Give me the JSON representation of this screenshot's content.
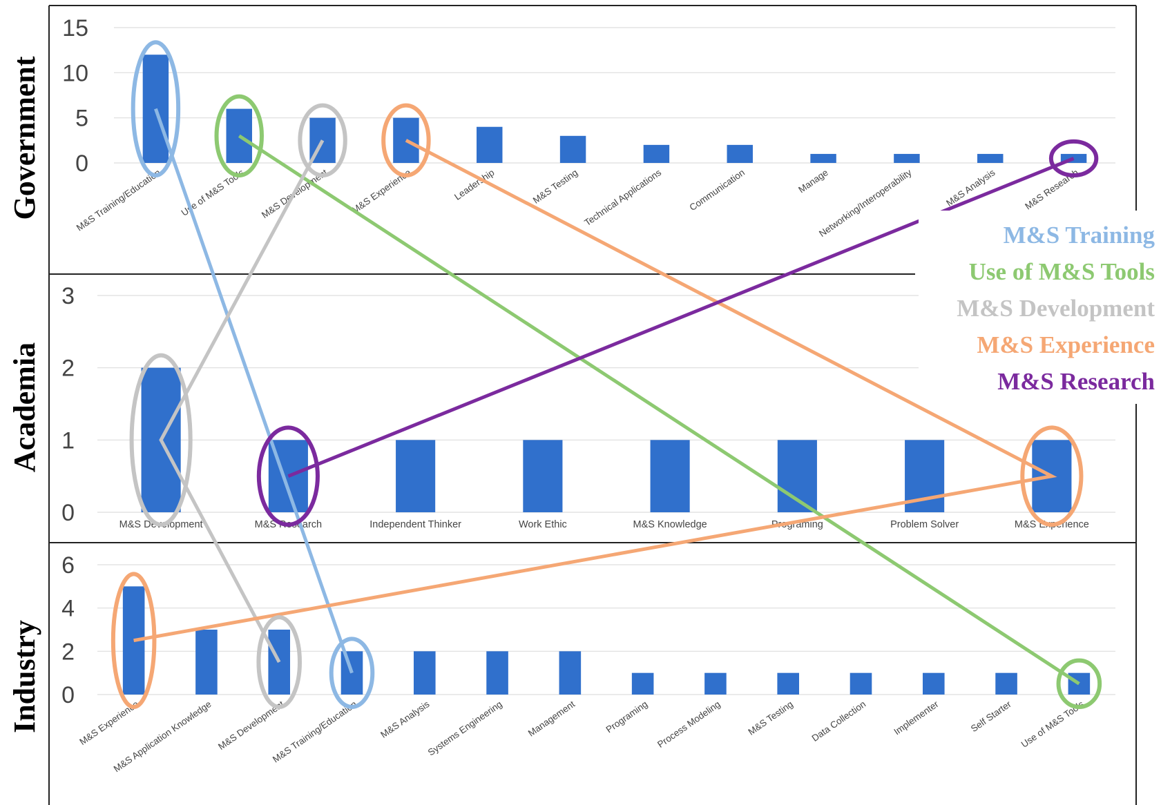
{
  "chart_data": [
    {
      "type": "bar",
      "title": "Government",
      "categories": [
        "M&S Training/Education",
        "Use of M&S Tools",
        "M&S Development",
        "M&S Experience",
        "Leadership",
        "M&S Testing",
        "Technical Applications",
        "Communication",
        "Manage",
        "Networking/Interoperability",
        "M&S Analysis",
        "M&S Research"
      ],
      "values": [
        12,
        6,
        5,
        5,
        4,
        3,
        2,
        2,
        1,
        1,
        1,
        1
      ],
      "yticks": [
        "0",
        "5",
        "10",
        "15"
      ],
      "ylim": [
        0,
        15
      ],
      "grid": true
    },
    {
      "type": "bar",
      "title": "Academia",
      "categories": [
        "M&S Development",
        "M&S Research",
        "Independent Thinker",
        "Work Ethic",
        "M&S Knowledge",
        "Programing",
        "Problem Solver",
        "M&S Experience"
      ],
      "values": [
        2,
        1,
        1,
        1,
        1,
        1,
        1,
        1
      ],
      "yticks": [
        "0",
        "1",
        "2",
        "3"
      ],
      "ylim": [
        0,
        3
      ],
      "grid": true
    },
    {
      "type": "bar",
      "title": "Industry",
      "categories": [
        "M&S Experience",
        "M&S Application Knowledge",
        "M&S Development",
        "M&S Training/Education",
        "M&S Analysis",
        "Systems Engineering",
        "Management",
        "Programing",
        "Process Modeling",
        "M&S Testing",
        "Data Collection",
        "Implementer",
        "Self Starter",
        "Use of M&S Tools"
      ],
      "values": [
        5,
        3,
        3,
        2,
        2,
        2,
        2,
        1,
        1,
        1,
        1,
        1,
        1,
        1
      ],
      "yticks": [
        "0",
        "2",
        "4",
        "6"
      ],
      "ylim": [
        0,
        6
      ],
      "grid": true
    }
  ],
  "legend": {
    "placement": "right",
    "items": [
      {
        "label": "M&S Training",
        "color": "#8DB8E4"
      },
      {
        "label": "Use of M&S Tools",
        "color": "#8DC971"
      },
      {
        "label": "M&S Development",
        "color": "#C4C4C4"
      },
      {
        "label": "M&S Experience",
        "color": "#F5A774"
      },
      {
        "label": "M&S Research",
        "color": "#7B2A9E"
      }
    ]
  },
  "bar_color": "#3070CC",
  "connections": [
    {
      "legend": 0,
      "points": [
        [
          0,
          0
        ],
        [
          2,
          3
        ]
      ]
    },
    {
      "legend": 1,
      "points": [
        [
          0,
          1
        ],
        [
          2,
          13
        ]
      ]
    },
    {
      "legend": 2,
      "points": [
        [
          0,
          2
        ],
        [
          1,
          0
        ],
        [
          2,
          2
        ]
      ]
    },
    {
      "legend": 3,
      "points": [
        [
          0,
          3
        ],
        [
          1,
          7
        ],
        [
          2,
          0
        ]
      ]
    },
    {
      "legend": 4,
      "points": [
        [
          0,
          11
        ],
        [
          1,
          1
        ]
      ]
    }
  ]
}
